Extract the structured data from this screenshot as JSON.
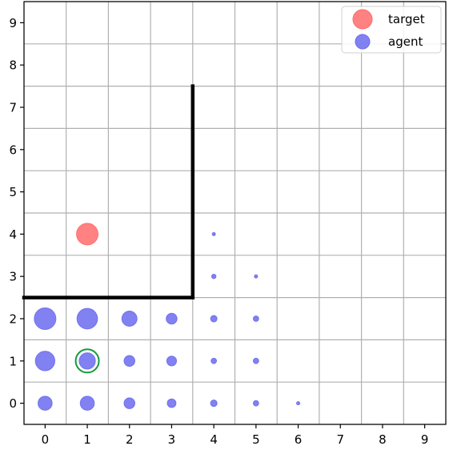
{
  "chart_data": {
    "type": "scatter",
    "title": "",
    "xlabel": "",
    "ylabel": "",
    "xlim": [
      -0.5,
      9.5
    ],
    "ylim": [
      -0.5,
      9.5
    ],
    "xticks": [
      "0",
      "1",
      "2",
      "3",
      "4",
      "5",
      "6",
      "7",
      "8",
      "9"
    ],
    "yticks": [
      "0",
      "1",
      "2",
      "3",
      "4",
      "5",
      "6",
      "7",
      "8",
      "9"
    ],
    "grid": true,
    "legend_position": "top-right",
    "series": [
      {
        "name": "target",
        "color": "#ff6b6b",
        "points": [
          {
            "x": 1,
            "y": 4,
            "size": 1.0
          }
        ]
      },
      {
        "name": "agent",
        "color": "#6b6bef",
        "points": [
          {
            "x": 0,
            "y": 0,
            "size": 0.65
          },
          {
            "x": 1,
            "y": 0,
            "size": 0.65
          },
          {
            "x": 2,
            "y": 0,
            "size": 0.5
          },
          {
            "x": 3,
            "y": 0,
            "size": 0.4
          },
          {
            "x": 4,
            "y": 0,
            "size": 0.3
          },
          {
            "x": 5,
            "y": 0,
            "size": 0.25
          },
          {
            "x": 6,
            "y": 0,
            "size": 0.15
          },
          {
            "x": 0,
            "y": 1,
            "size": 0.9
          },
          {
            "x": 1,
            "y": 1,
            "size": 0.75
          },
          {
            "x": 2,
            "y": 1,
            "size": 0.5
          },
          {
            "x": 3,
            "y": 1,
            "size": 0.45
          },
          {
            "x": 4,
            "y": 1,
            "size": 0.25
          },
          {
            "x": 5,
            "y": 1,
            "size": 0.25
          },
          {
            "x": 0,
            "y": 2,
            "size": 1.0
          },
          {
            "x": 1,
            "y": 2,
            "size": 0.95
          },
          {
            "x": 2,
            "y": 2,
            "size": 0.7
          },
          {
            "x": 3,
            "y": 2,
            "size": 0.5
          },
          {
            "x": 4,
            "y": 2,
            "size": 0.3
          },
          {
            "x": 5,
            "y": 2,
            "size": 0.25
          },
          {
            "x": 4,
            "y": 3,
            "size": 0.2
          },
          {
            "x": 5,
            "y": 3,
            "size": 0.15
          },
          {
            "x": 4,
            "y": 4,
            "size": 0.15
          }
        ]
      }
    ],
    "highlight": {
      "x": 1,
      "y": 1,
      "color": "#159a3c"
    },
    "walls": [
      {
        "from": [
          -0.5,
          2.5
        ],
        "to": [
          3.5,
          2.5
        ]
      },
      {
        "from": [
          3.5,
          2.5
        ],
        "to": [
          3.5,
          7.5
        ]
      }
    ],
    "colors": {
      "grid": "#b0b0b0",
      "wall": "#000000",
      "axis": "#000000"
    }
  }
}
